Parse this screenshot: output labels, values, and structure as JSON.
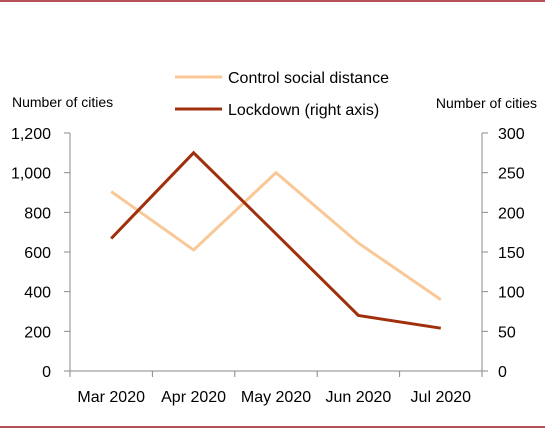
{
  "chart_data": {
    "type": "line",
    "categories": [
      "Mar 2020",
      "Apr 2020",
      "May 2020",
      "Jun 2020",
      "Jul 2020"
    ],
    "left_axis": {
      "label": "Number of cities",
      "ylim": [
        0,
        1200
      ],
      "ticks": [
        "0",
        "200",
        "400",
        "600",
        "800",
        "1,000",
        "1,200"
      ]
    },
    "right_axis": {
      "label": "Number of cities",
      "ylim": [
        0,
        300
      ],
      "ticks": [
        "0",
        "50",
        "100",
        "150",
        "200",
        "250",
        "300"
      ]
    },
    "series": [
      {
        "name": "Control social distance",
        "axis": "left",
        "color": "#F9C896",
        "values": [
          905,
          610,
          1000,
          645,
          360
        ]
      },
      {
        "name": "Lockdown (right axis)",
        "axis": "right",
        "color": "#A0300D",
        "values": [
          167,
          275,
          173,
          70,
          54
        ]
      }
    ],
    "legend_position": "top-center",
    "grid": false,
    "frame_color": "#B5525A"
  }
}
